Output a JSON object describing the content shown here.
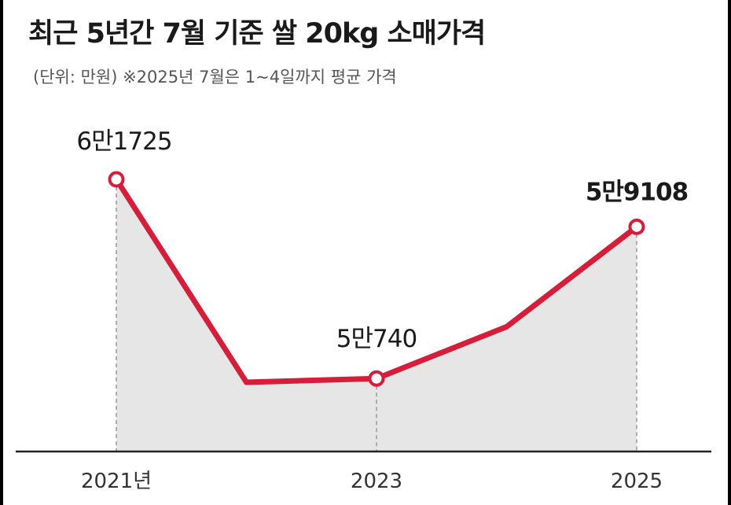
{
  "title": "최근 5년간 7월 기준 쌀 20kg 소매가격",
  "subtitle": "(단위: 만원)  ※2025년 7월은 1~4일까지 평균 가격",
  "colors": {
    "line": "#d41e3a",
    "area": "#e6e6e6",
    "axis": "#222222",
    "guide": "#999999",
    "marker_fill": "#ffffff"
  },
  "chart_data": {
    "type": "area",
    "x": [
      2021,
      2022,
      2023,
      2024,
      2025
    ],
    "values": [
      6.1725,
      5.0532,
      5.074,
      5.3596,
      5.9108
    ],
    "ylim": [
      4.2,
      6.6
    ],
    "labeled_points": [
      {
        "x": 2021,
        "text": "6만1725"
      },
      {
        "x": 2023,
        "text": "5만740"
      },
      {
        "x": 2025,
        "text": "5만9108"
      }
    ],
    "x_tick_labels": [
      {
        "x": 2021,
        "text": "2021년"
      },
      {
        "x": 2023,
        "text": "2023"
      },
      {
        "x": 2025,
        "text": "2025"
      }
    ],
    "unit": "만원"
  }
}
